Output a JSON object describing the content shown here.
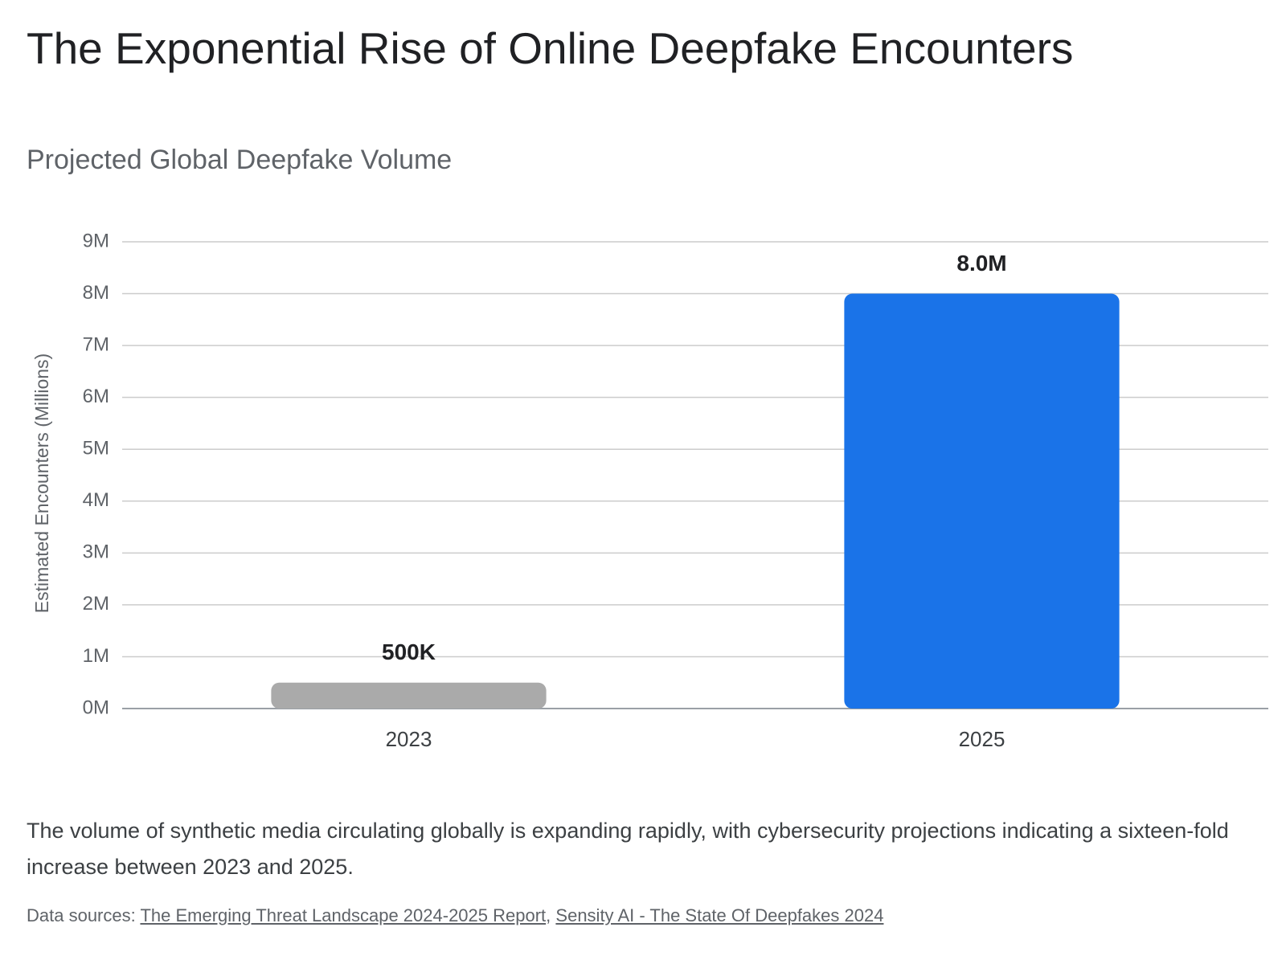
{
  "heading": "The Exponential Rise of Online Deepfake Encounters",
  "chart_data": {
    "type": "bar",
    "title": "Projected Global Deepfake Volume",
    "y_label": "Estimated Encounters (Millions)",
    "categories": [
      "2023",
      "2025"
    ],
    "values": [
      0.5,
      8
    ],
    "value_labels": [
      "500K",
      "8.0M"
    ],
    "colors": [
      "#aaaaaa",
      "#1a73e8"
    ],
    "ylim": [
      0,
      9
    ],
    "yticks": [
      {
        "value": 0,
        "label": "0M"
      },
      {
        "value": 1,
        "label": "1M"
      },
      {
        "value": 2,
        "label": "2M"
      },
      {
        "value": 3,
        "label": "3M"
      },
      {
        "value": 4,
        "label": "4M"
      },
      {
        "value": 5,
        "label": "5M"
      },
      {
        "value": 6,
        "label": "6M"
      },
      {
        "value": 7,
        "label": "7M"
      },
      {
        "value": 8,
        "label": "8M"
      },
      {
        "value": 9,
        "label": "9M"
      }
    ],
    "grid": true
  },
  "description": "The volume of synthetic media circulating globally is expanding rapidly, with cybersecurity projections indicating a sixteen-fold increase between 2023 and 2025.",
  "sources": {
    "label": "Data sources:",
    "separator": ",",
    "links": [
      "The Emerging Threat Landscape 2024-2025 Report",
      "Sensity AI - The State Of Deepfakes 2024"
    ]
  }
}
